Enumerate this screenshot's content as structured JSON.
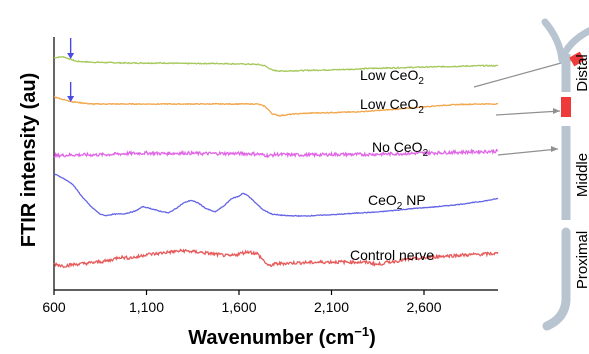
{
  "chart_data": {
    "type": "line",
    "xlabel_base": "Wavenumber (cm",
    "xlabel_sup": "−1",
    "xlabel_close": ")",
    "ylabel": "FTIR intensity (au)",
    "xlim": [
      600,
      3000
    ],
    "x_ticks": [
      600,
      1100,
      1600,
      2100,
      2600
    ],
    "x_tick_labels": [
      "600",
      "1,100",
      "1,600",
      "2,100",
      "2,600"
    ],
    "grid": false,
    "arrow_markers": [
      {
        "x": 690,
        "series": "Low CeO2 (distal)"
      },
      {
        "x": 690,
        "series": "Low CeO2"
      }
    ],
    "series": [
      {
        "label_parts": [
          "Low CeO",
          "2",
          ""
        ],
        "color": "#a4c85a",
        "offset": 4.45,
        "noise": 0.012,
        "points": [
          [
            600,
            0.18
          ],
          [
            650,
            0.2
          ],
          [
            720,
            0.1
          ],
          [
            800,
            0.08
          ],
          [
            900,
            0.07
          ],
          [
            1000,
            0.06
          ],
          [
            1100,
            0.06
          ],
          [
            1200,
            0.06
          ],
          [
            1300,
            0.05
          ],
          [
            1400,
            0.05
          ],
          [
            1500,
            0.05
          ],
          [
            1600,
            0.04
          ],
          [
            1700,
            0.03
          ],
          [
            1740,
            0.0
          ],
          [
            1780,
            -0.1
          ],
          [
            1830,
            -0.12
          ],
          [
            1900,
            -0.11
          ],
          [
            2000,
            -0.1
          ],
          [
            2100,
            -0.09
          ],
          [
            2200,
            -0.08
          ],
          [
            2300,
            -0.06
          ],
          [
            2400,
            -0.05
          ],
          [
            2500,
            -0.04
          ],
          [
            2600,
            -0.03
          ],
          [
            2700,
            -0.02
          ],
          [
            2800,
            -0.01
          ],
          [
            2900,
            0.0
          ],
          [
            3000,
            0.0
          ]
        ]
      },
      {
        "label_parts": [
          "Low CeO",
          "2",
          ""
        ],
        "color": "#f2a64a",
        "offset": 3.6,
        "noise": 0.01,
        "points": [
          [
            600,
            0.16
          ],
          [
            650,
            0.1
          ],
          [
            700,
            0.05
          ],
          [
            800,
            0.0
          ],
          [
            900,
            0.0
          ],
          [
            1000,
            0.0
          ],
          [
            1100,
            0.0
          ],
          [
            1200,
            0.0
          ],
          [
            1300,
            0.0
          ],
          [
            1400,
            0.0
          ],
          [
            1500,
            0.0
          ],
          [
            1600,
            0.0
          ],
          [
            1700,
            0.0
          ],
          [
            1740,
            -0.05
          ],
          [
            1780,
            -0.22
          ],
          [
            1820,
            -0.26
          ],
          [
            1900,
            -0.22
          ],
          [
            2000,
            -0.2
          ],
          [
            2100,
            -0.19
          ],
          [
            2200,
            -0.18
          ],
          [
            2300,
            -0.16
          ],
          [
            2400,
            -0.13
          ],
          [
            2500,
            -0.1
          ],
          [
            2600,
            -0.06
          ],
          [
            2700,
            -0.03
          ],
          [
            2800,
            -0.01
          ],
          [
            2900,
            0.0
          ],
          [
            3000,
            0.0
          ]
        ]
      },
      {
        "label_parts": [
          "No CeO",
          "2",
          ""
        ],
        "color": "#e066e6",
        "offset": 2.45,
        "noise": 0.035,
        "points": [
          [
            600,
            0.0
          ],
          [
            700,
            0.02
          ],
          [
            800,
            0.02
          ],
          [
            900,
            0.03
          ],
          [
            1000,
            0.05
          ],
          [
            1100,
            0.06
          ],
          [
            1200,
            0.05
          ],
          [
            1300,
            0.06
          ],
          [
            1400,
            0.05
          ],
          [
            1500,
            0.05
          ],
          [
            1600,
            0.05
          ],
          [
            1700,
            0.04
          ],
          [
            1760,
            0.0
          ],
          [
            1800,
            0.03
          ],
          [
            1900,
            0.02
          ],
          [
            2000,
            0.02
          ],
          [
            2100,
            0.03
          ],
          [
            2200,
            0.03
          ],
          [
            2300,
            0.03
          ],
          [
            2400,
            0.04
          ],
          [
            2500,
            0.05
          ],
          [
            2600,
            0.06
          ],
          [
            2700,
            0.07
          ],
          [
            2800,
            0.08
          ],
          [
            2900,
            0.09
          ],
          [
            3000,
            0.1
          ]
        ]
      },
      {
        "label_parts": [
          "CeO",
          "2",
          " NP"
        ],
        "color": "#6464e6",
        "offset": 1.1,
        "noise": 0.008,
        "points": [
          [
            600,
            0.95
          ],
          [
            650,
            0.85
          ],
          [
            700,
            0.72
          ],
          [
            750,
            0.45
          ],
          [
            800,
            0.22
          ],
          [
            850,
            0.05
          ],
          [
            880,
            0.02
          ],
          [
            920,
            0.05
          ],
          [
            980,
            0.06
          ],
          [
            1040,
            0.12
          ],
          [
            1080,
            0.22
          ],
          [
            1120,
            0.18
          ],
          [
            1170,
            0.12
          ],
          [
            1220,
            0.08
          ],
          [
            1260,
            0.18
          ],
          [
            1300,
            0.3
          ],
          [
            1340,
            0.36
          ],
          [
            1380,
            0.3
          ],
          [
            1420,
            0.18
          ],
          [
            1470,
            0.1
          ],
          [
            1520,
            0.24
          ],
          [
            1560,
            0.4
          ],
          [
            1600,
            0.45
          ],
          [
            1620,
            0.52
          ],
          [
            1650,
            0.46
          ],
          [
            1690,
            0.3
          ],
          [
            1730,
            0.15
          ],
          [
            1780,
            0.05
          ],
          [
            1850,
            0.02
          ],
          [
            1950,
            0.01
          ],
          [
            2050,
            0.03
          ],
          [
            2150,
            0.05
          ],
          [
            2250,
            0.08
          ],
          [
            2350,
            0.1
          ],
          [
            2450,
            0.14
          ],
          [
            2550,
            0.18
          ],
          [
            2650,
            0.21
          ],
          [
            2750,
            0.25
          ],
          [
            2850,
            0.3
          ],
          [
            2950,
            0.36
          ],
          [
            3000,
            0.4
          ]
        ]
      },
      {
        "label_parts": [
          "Control nerve",
          "",
          ""
        ],
        "color": "#e65a5a",
        "offset": 0.0,
        "noise": 0.035,
        "points": [
          [
            600,
            0.05
          ],
          [
            650,
            0.0
          ],
          [
            700,
            0.03
          ],
          [
            800,
            0.07
          ],
          [
            900,
            0.12
          ],
          [
            950,
            0.2
          ],
          [
            1000,
            0.18
          ],
          [
            1050,
            0.2
          ],
          [
            1100,
            0.26
          ],
          [
            1150,
            0.27
          ],
          [
            1200,
            0.3
          ],
          [
            1300,
            0.34
          ],
          [
            1400,
            0.3
          ],
          [
            1500,
            0.25
          ],
          [
            1550,
            0.22
          ],
          [
            1600,
            0.27
          ],
          [
            1650,
            0.32
          ],
          [
            1700,
            0.27
          ],
          [
            1760,
            0.0
          ],
          [
            1800,
            0.05
          ],
          [
            1900,
            0.07
          ],
          [
            2000,
            0.08
          ],
          [
            2100,
            0.09
          ],
          [
            2200,
            0.09
          ],
          [
            2300,
            0.08
          ],
          [
            2350,
            0.03
          ],
          [
            2400,
            0.08
          ],
          [
            2500,
            0.14
          ],
          [
            2600,
            0.18
          ],
          [
            2700,
            0.22
          ],
          [
            2800,
            0.24
          ],
          [
            2900,
            0.26
          ],
          [
            3000,
            0.28
          ]
        ]
      }
    ]
  },
  "nerve_diagram": {
    "region_labels": [
      "Distal",
      "Middle",
      "Proximal"
    ],
    "nerve_color": "#b8c4d0",
    "marker_color": "#ee3a3a",
    "pointer_color": "#909090"
  }
}
